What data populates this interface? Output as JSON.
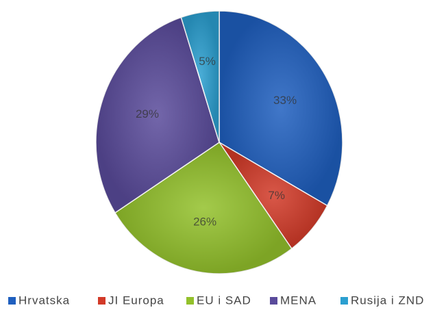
{
  "chart_data": {
    "type": "pie",
    "categories": [
      "Hrvatska",
      "JI Europa",
      "EU i SAD",
      "MENA",
      "Rusija i ZND"
    ],
    "values": [
      33,
      7,
      26,
      29,
      5
    ],
    "value_labels": [
      "33%",
      "7%",
      "26%",
      "29%",
      "5%"
    ],
    "colors": [
      "#1f5fbf",
      "#d23a28",
      "#93c12b",
      "#5a4b9b",
      "#2b9fd0"
    ],
    "legend": "bottom"
  }
}
